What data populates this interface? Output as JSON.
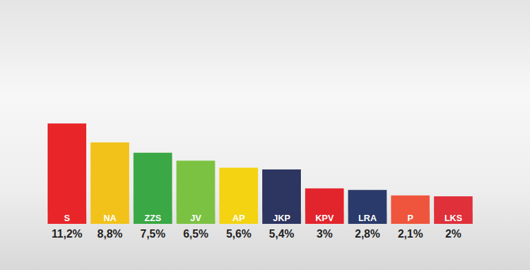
{
  "chart_data": {
    "type": "bar",
    "categories": [
      "S",
      "NA",
      "ZZS",
      "JV",
      "AP",
      "JKP",
      "KPV",
      "LRA",
      "P",
      "LKS"
    ],
    "values": [
      11.2,
      8.8,
      7.5,
      6.5,
      5.6,
      5.4,
      3,
      2.8,
      2.1,
      2
    ],
    "value_labels": [
      "11,2%",
      "8,8%",
      "7,5%",
      "6,5%",
      "5,6%",
      "5,4%",
      "3%",
      "2,8%",
      "2,1%",
      "2%"
    ],
    "colors": [
      "#e8262a",
      "#f2c21b",
      "#3aa844",
      "#7cc242",
      "#f3d312",
      "#2d3561",
      "#e2242c",
      "#2a3a6a",
      "#ef553c",
      "#e0303a"
    ],
    "data_labels": true,
    "tick_labels": false
  }
}
